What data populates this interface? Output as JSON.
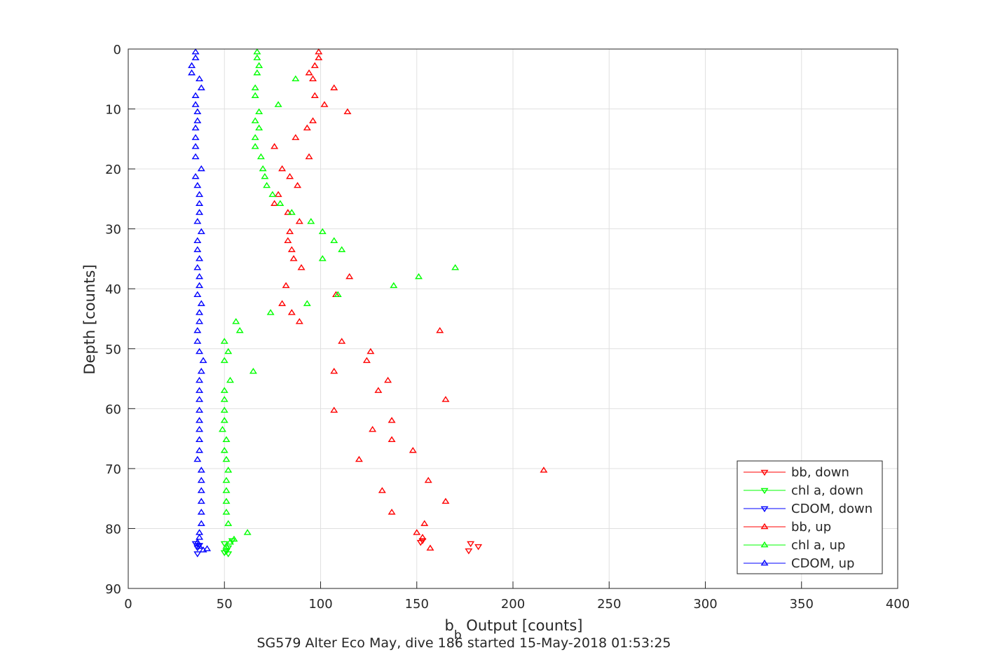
{
  "chart_data": {
    "type": "scatter",
    "title": "SG579 Alter Eco May, dive 186 started 15-May-2018 01:53:25",
    "xlabel": {
      "main": "b",
      "sub": "b",
      "rest": " Output [counts]"
    },
    "ylabel": "Depth [counts]",
    "xlim": [
      0,
      400
    ],
    "ylim": [
      0,
      90
    ],
    "y_reversed": true,
    "grid": true,
    "legend_position": "bottom-right",
    "x_ticks": [
      "0",
      "50",
      "100",
      "150",
      "200",
      "250",
      "300",
      "350",
      "400"
    ],
    "y_ticks": [
      "0",
      "10",
      "20",
      "30",
      "40",
      "50",
      "60",
      "70",
      "80",
      "90"
    ],
    "series": [
      {
        "name": "bb, down",
        "color": "#ff0000",
        "marker": "triangle-down",
        "points": [
          [
            152,
            82.3
          ],
          [
            178,
            82.5
          ],
          [
            153,
            82.0
          ],
          [
            182,
            83.0
          ],
          [
            177,
            83.7
          ]
        ]
      },
      {
        "name": "chl a, down",
        "color": "#00ff00",
        "marker": "triangle-down",
        "points": [
          [
            50,
            82.5
          ],
          [
            52,
            83.2
          ],
          [
            54,
            82.0
          ],
          [
            51,
            83.8
          ],
          [
            50,
            84.0
          ],
          [
            52,
            84.2
          ]
        ]
      },
      {
        "name": "CDOM, down",
        "color": "#0000ff",
        "marker": "triangle-down",
        "points": [
          [
            35,
            82.5
          ],
          [
            37,
            82.8
          ],
          [
            36,
            83.2
          ],
          [
            36,
            84.2
          ]
        ]
      },
      {
        "name": "bb, up",
        "color": "#ff0000",
        "marker": "triangle-up",
        "points": [
          [
            99,
            0.5
          ],
          [
            99,
            1.5
          ],
          [
            97,
            2.8
          ],
          [
            94,
            4.0
          ],
          [
            96,
            5.0
          ],
          [
            107,
            6.5
          ],
          [
            97,
            7.8
          ],
          [
            102,
            9.3
          ],
          [
            114,
            10.5
          ],
          [
            96,
            12.0
          ],
          [
            93,
            13.2
          ],
          [
            87,
            14.8
          ],
          [
            76,
            16.3
          ],
          [
            94,
            18.0
          ],
          [
            80,
            20.0
          ],
          [
            84,
            21.3
          ],
          [
            88,
            22.8
          ],
          [
            78,
            24.3
          ],
          [
            76,
            25.8
          ],
          [
            83,
            27.3
          ],
          [
            89,
            28.8
          ],
          [
            84,
            30.5
          ],
          [
            83,
            32.0
          ],
          [
            85,
            33.5
          ],
          [
            86,
            35.0
          ],
          [
            90,
            36.5
          ],
          [
            115,
            38.0
          ],
          [
            82,
            39.5
          ],
          [
            108,
            41.0
          ],
          [
            80,
            42.5
          ],
          [
            85,
            44.0
          ],
          [
            89,
            45.5
          ],
          [
            162,
            47.0
          ],
          [
            111,
            48.8
          ],
          [
            126,
            50.5
          ],
          [
            124,
            52.0
          ],
          [
            107,
            53.8
          ],
          [
            135,
            55.3
          ],
          [
            130,
            57.0
          ],
          [
            165,
            58.5
          ],
          [
            107,
            60.3
          ],
          [
            137,
            62.0
          ],
          [
            127,
            63.5
          ],
          [
            137,
            65.2
          ],
          [
            148,
            67.0
          ],
          [
            120,
            68.5
          ],
          [
            216,
            70.3
          ],
          [
            156,
            72.0
          ],
          [
            132,
            73.7
          ],
          [
            165,
            75.5
          ],
          [
            137,
            77.3
          ],
          [
            154,
            79.2
          ],
          [
            150,
            80.7
          ],
          [
            153,
            81.5
          ],
          [
            157,
            83.3
          ]
        ]
      },
      {
        "name": "chl a, up",
        "color": "#00ff00",
        "marker": "triangle-up",
        "points": [
          [
            67,
            0.5
          ],
          [
            67,
            1.5
          ],
          [
            68,
            2.8
          ],
          [
            67,
            4.0
          ],
          [
            87,
            5.0
          ],
          [
            66,
            6.5
          ],
          [
            66,
            7.8
          ],
          [
            78,
            9.3
          ],
          [
            68,
            10.5
          ],
          [
            66,
            12.0
          ],
          [
            68,
            13.2
          ],
          [
            66,
            14.8
          ],
          [
            66,
            16.3
          ],
          [
            69,
            18.0
          ],
          [
            70,
            20.0
          ],
          [
            71,
            21.3
          ],
          [
            72,
            22.8
          ],
          [
            75,
            24.3
          ],
          [
            79,
            25.8
          ],
          [
            85,
            27.3
          ],
          [
            95,
            28.8
          ],
          [
            101,
            30.5
          ],
          [
            107,
            32.0
          ],
          [
            111,
            33.5
          ],
          [
            101,
            35.0
          ],
          [
            170,
            36.5
          ],
          [
            151,
            38.0
          ],
          [
            138,
            39.5
          ],
          [
            109,
            41.0
          ],
          [
            93,
            42.5
          ],
          [
            74,
            44.0
          ],
          [
            56,
            45.5
          ],
          [
            58,
            47.0
          ],
          [
            50,
            48.8
          ],
          [
            52,
            50.5
          ],
          [
            50,
            52.0
          ],
          [
            65,
            53.8
          ],
          [
            53,
            55.3
          ],
          [
            50,
            57.0
          ],
          [
            50,
            58.5
          ],
          [
            50,
            60.3
          ],
          [
            50,
            62.0
          ],
          [
            49,
            63.5
          ],
          [
            51,
            65.2
          ],
          [
            50,
            67.0
          ],
          [
            51,
            68.5
          ],
          [
            52,
            70.3
          ],
          [
            51,
            72.0
          ],
          [
            51,
            73.7
          ],
          [
            51,
            75.5
          ],
          [
            51,
            77.3
          ],
          [
            52,
            79.2
          ],
          [
            62,
            80.7
          ],
          [
            55,
            81.8
          ],
          [
            53,
            82.3
          ],
          [
            51,
            83.0
          ]
        ]
      },
      {
        "name": "CDOM, up",
        "color": "#0000ff",
        "marker": "triangle-up",
        "points": [
          [
            35,
            0.5
          ],
          [
            35,
            1.5
          ],
          [
            33,
            2.8
          ],
          [
            33,
            4.0
          ],
          [
            37,
            5.0
          ],
          [
            38,
            6.5
          ],
          [
            35,
            7.8
          ],
          [
            35,
            9.3
          ],
          [
            36,
            10.5
          ],
          [
            36,
            12.0
          ],
          [
            35,
            13.2
          ],
          [
            35,
            14.8
          ],
          [
            35,
            16.3
          ],
          [
            35,
            18.0
          ],
          [
            38,
            20.0
          ],
          [
            35,
            21.3
          ],
          [
            36,
            22.8
          ],
          [
            37,
            24.3
          ],
          [
            37,
            25.8
          ],
          [
            37,
            27.3
          ],
          [
            36,
            28.8
          ],
          [
            38,
            30.5
          ],
          [
            36,
            32.0
          ],
          [
            36,
            33.5
          ],
          [
            37,
            35.0
          ],
          [
            36,
            36.5
          ],
          [
            37,
            38.0
          ],
          [
            37,
            39.5
          ],
          [
            36,
            41.0
          ],
          [
            38,
            42.5
          ],
          [
            37,
            44.0
          ],
          [
            37,
            45.5
          ],
          [
            36,
            47.0
          ],
          [
            36,
            48.8
          ],
          [
            37,
            50.5
          ],
          [
            39,
            52.0
          ],
          [
            38,
            53.8
          ],
          [
            37,
            55.3
          ],
          [
            37,
            57.0
          ],
          [
            37,
            58.5
          ],
          [
            37,
            60.3
          ],
          [
            37,
            62.0
          ],
          [
            37,
            63.5
          ],
          [
            37,
            65.2
          ],
          [
            37,
            67.0
          ],
          [
            36,
            68.5
          ],
          [
            38,
            70.3
          ],
          [
            38,
            72.0
          ],
          [
            38,
            73.7
          ],
          [
            38,
            75.5
          ],
          [
            38,
            77.3
          ],
          [
            38,
            79.2
          ],
          [
            37,
            80.7
          ],
          [
            37,
            81.5
          ],
          [
            36,
            82.3
          ],
          [
            37,
            83.0
          ],
          [
            41,
            83.4
          ],
          [
            39,
            83.6
          ]
        ]
      }
    ]
  }
}
